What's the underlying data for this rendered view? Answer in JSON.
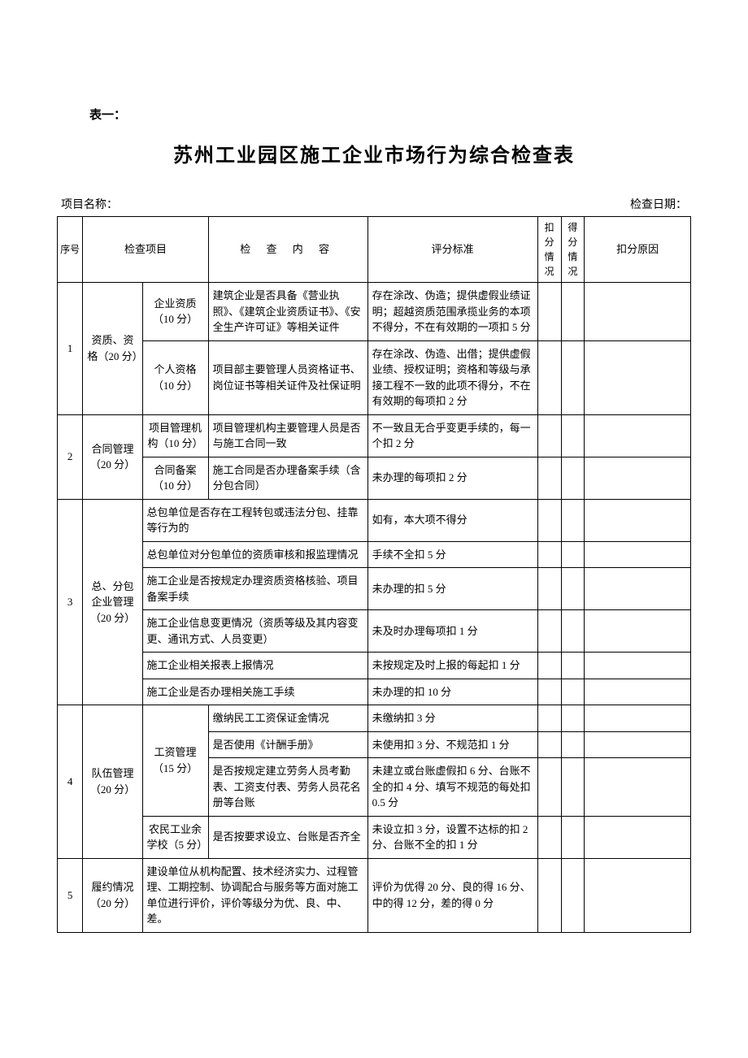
{
  "table_label": "表一：",
  "title": "苏州工业园区施工企业市场行为综合检查表",
  "project_name_label": "项目名称：",
  "check_date_label": "检查日期：",
  "headers": {
    "seq": "序号",
    "category": "检查项目",
    "content": "检 查 内 容",
    "criteria": "评分标准",
    "deduct": "扣分情况",
    "score": "得分情况",
    "reason": "扣分原因"
  },
  "rows": [
    {
      "seq": "1",
      "category": "资质、资格（20 分）",
      "subcategories": [
        {
          "sub": "企业资质（10 分）",
          "content": "建筑企业是否具备《营业执照》、《建筑企业资质证书》、《安全生产许可证》等相关证件",
          "criteria": "存在涂改、伪造；提供虚假业绩证明；超越资质范围承揽业务的本项不得分，不在有效期的一项扣 5 分"
        },
        {
          "sub": "个人资格（10 分）",
          "content": "项目部主要管理人员资格证书、岗位证书等相关证件及社保证明",
          "criteria": "存在涂改、伪造、出借；提供虚假业绩、授权证明；资格和等级与承接工程不一致的此项不得分，不在有效期的每项扣 2 分"
        }
      ]
    },
    {
      "seq": "2",
      "category": "合同管理（20 分）",
      "subcategories": [
        {
          "sub": "项目管理机构（10 分）",
          "content": "项目管理机构主要管理人员是否与施工合同一致",
          "criteria": "不一致且无合乎变更手续的，每一个扣 2 分"
        },
        {
          "sub": "合同备案（10 分）",
          "content": "施工合同是否办理备案手续（含分包合同）",
          "criteria": "未办理的每项扣 2 分"
        }
      ]
    },
    {
      "seq": "3",
      "category": "总、分包企业管理（20 分）",
      "merged_rows": [
        {
          "content": "总包单位是否存在工程转包或违法分包、挂靠等行为的",
          "criteria": "如有，本大项不得分"
        },
        {
          "content": "总包单位对分包单位的资质审核和报监理情况",
          "criteria": "手续不全扣 5 分"
        },
        {
          "content": "施工企业是否按规定办理资质资格核验、项目备案手续",
          "criteria": "未办理的扣 5 分"
        },
        {
          "content": "施工企业信息变更情况（资质等级及其内容变更、通讯方式、人员变更）",
          "criteria": "未及时办理每项扣 1 分"
        },
        {
          "content": "施工企业相关报表上报情况",
          "criteria": "未按规定及时上报的每起扣 1 分"
        },
        {
          "content": "施工企业是否办理相关施工手续",
          "criteria": "未办理的扣 10 分"
        }
      ]
    },
    {
      "seq": "4",
      "category": "队伍管理（20 分）",
      "subcategories": [
        {
          "sub": "工资管理（15 分）",
          "sub_rowspan": 3,
          "items": [
            {
              "content": "缴纳民工工资保证金情况",
              "criteria": "未缴纳扣 3 分"
            },
            {
              "content": "是否使用《计酬手册》",
              "criteria": "未使用扣 3 分、不规范扣 1 分"
            },
            {
              "content": "是否按规定建立劳务人员考勤表、工资支付表、劳务人员花名册等台账",
              "criteria": "未建立或台账虚假扣 6 分、台账不全的扣 4 分、填写不规范的每处扣 0.5 分"
            }
          ]
        },
        {
          "sub": "农民工业余学校（5 分）",
          "content": "是否按要求设立、台账是否齐全",
          "criteria": "未设立扣 3 分，设置不达标的扣 2 分、台账不全的扣 1 分"
        }
      ]
    },
    {
      "seq": "5",
      "category": "履约情况（20 分）",
      "merged_rows": [
        {
          "content": "建设单位从机构配置、技术经济实力、过程管理、工期控制、协调配合与服务等方面对施工单位进行评价，评价等级分为优、良、中、差。",
          "criteria": "评价为优得 20 分、良的得 16 分、中的得 12 分，差的得 0 分"
        }
      ]
    }
  ]
}
